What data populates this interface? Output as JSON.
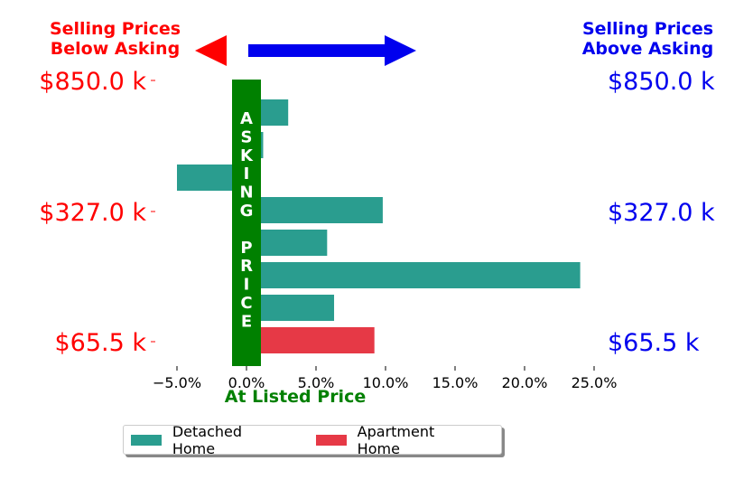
{
  "header": {
    "left_label": "Selling Prices\nBelow Asking",
    "right_label": "Selling Prices\nAbove Asking"
  },
  "colors": {
    "below": "#ff0000",
    "above": "#0000ee",
    "asking": "#008000",
    "detached": "#2a9d8f",
    "apartment": "#e63946"
  },
  "chart_data": {
    "type": "bar",
    "orientation": "horizontal",
    "xlabel": "At Listed Price",
    "x_ticks": [
      "−5.0%",
      "0.0%",
      "5.0%",
      "10.0%",
      "15.0%",
      "20.0%",
      "25.0%"
    ],
    "xlim": [
      -6.0,
      26.0
    ],
    "y_ticks_left": [
      "$850.0 k",
      "$327.0 k",
      "$65.5 k"
    ],
    "y_ticks_right": [
      "$850.0 k",
      "$327.0 k",
      "$65.5 k"
    ],
    "asking_band_label": "A\nS\nK\nI\nN\nG\n\nP\nR\nI\nC\nE",
    "bars": [
      {
        "series": "Detached Home",
        "value": 3.0
      },
      {
        "series": "Detached Home",
        "value": 1.2
      },
      {
        "series": "Detached Home",
        "value": -5.0
      },
      {
        "series": "Detached Home",
        "value": 9.8
      },
      {
        "series": "Detached Home",
        "value": 5.8
      },
      {
        "series": "Detached Home",
        "value": 24.0
      },
      {
        "series": "Detached Home",
        "value": 6.3
      },
      {
        "series": "Apartment Home",
        "value": 9.2
      }
    ],
    "legend": [
      "Detached Home",
      "Apartment Home"
    ],
    "legend_position": "bottom"
  }
}
